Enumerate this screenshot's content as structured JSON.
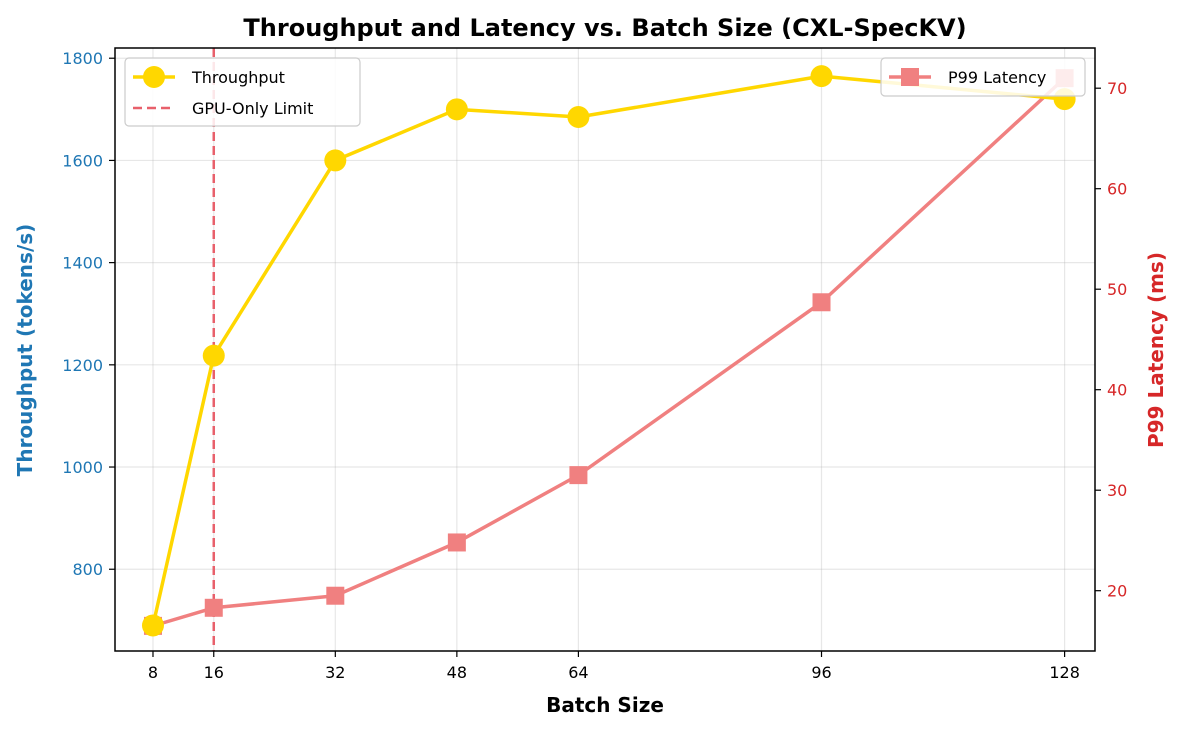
{
  "chart_data": {
    "type": "line",
    "title": "Throughput and Latency vs. Batch Size (CXL-SpecKV)",
    "xlabel": "Batch Size",
    "x": [
      8,
      16,
      32,
      48,
      64,
      96,
      128
    ],
    "x_ticks": [
      "8",
      "16",
      "32",
      "48",
      "64",
      "96",
      "128"
    ],
    "xlim": [
      3,
      132
    ],
    "grid": true,
    "y_left": {
      "label": "Throughput (tokens/s)",
      "color": "#1f77b4",
      "ylim": [
        640,
        1820
      ],
      "ticks": [
        800,
        1000,
        1200,
        1400,
        1600,
        1800
      ]
    },
    "y_right": {
      "label": "P99 Latency (ms)",
      "color": "#d62728",
      "ylim": [
        14,
        74
      ],
      "ticks": [
        20,
        30,
        40,
        50,
        60,
        70
      ]
    },
    "series": [
      {
        "name": "Throughput",
        "axis": "left",
        "color": "#FFD700",
        "marker": "circle",
        "values": [
          690,
          1218,
          1600,
          1700,
          1685,
          1765,
          1720
        ]
      },
      {
        "name": "P99 Latency",
        "axis": "right",
        "color": "#F08080",
        "marker": "square",
        "values": [
          16.5,
          18.3,
          19.5,
          24.8,
          31.5,
          48.7,
          71.0
        ]
      }
    ],
    "reference_lines": [
      {
        "name": "GPU-Only Limit",
        "x": 16,
        "color": "#E8606B",
        "style": "dashed"
      }
    ],
    "legends": {
      "left": {
        "placement": "upper-left",
        "entries": [
          "Throughput",
          "GPU-Only Limit"
        ]
      },
      "right": {
        "placement": "upper-right",
        "entries": [
          "P99 Latency"
        ]
      }
    }
  }
}
